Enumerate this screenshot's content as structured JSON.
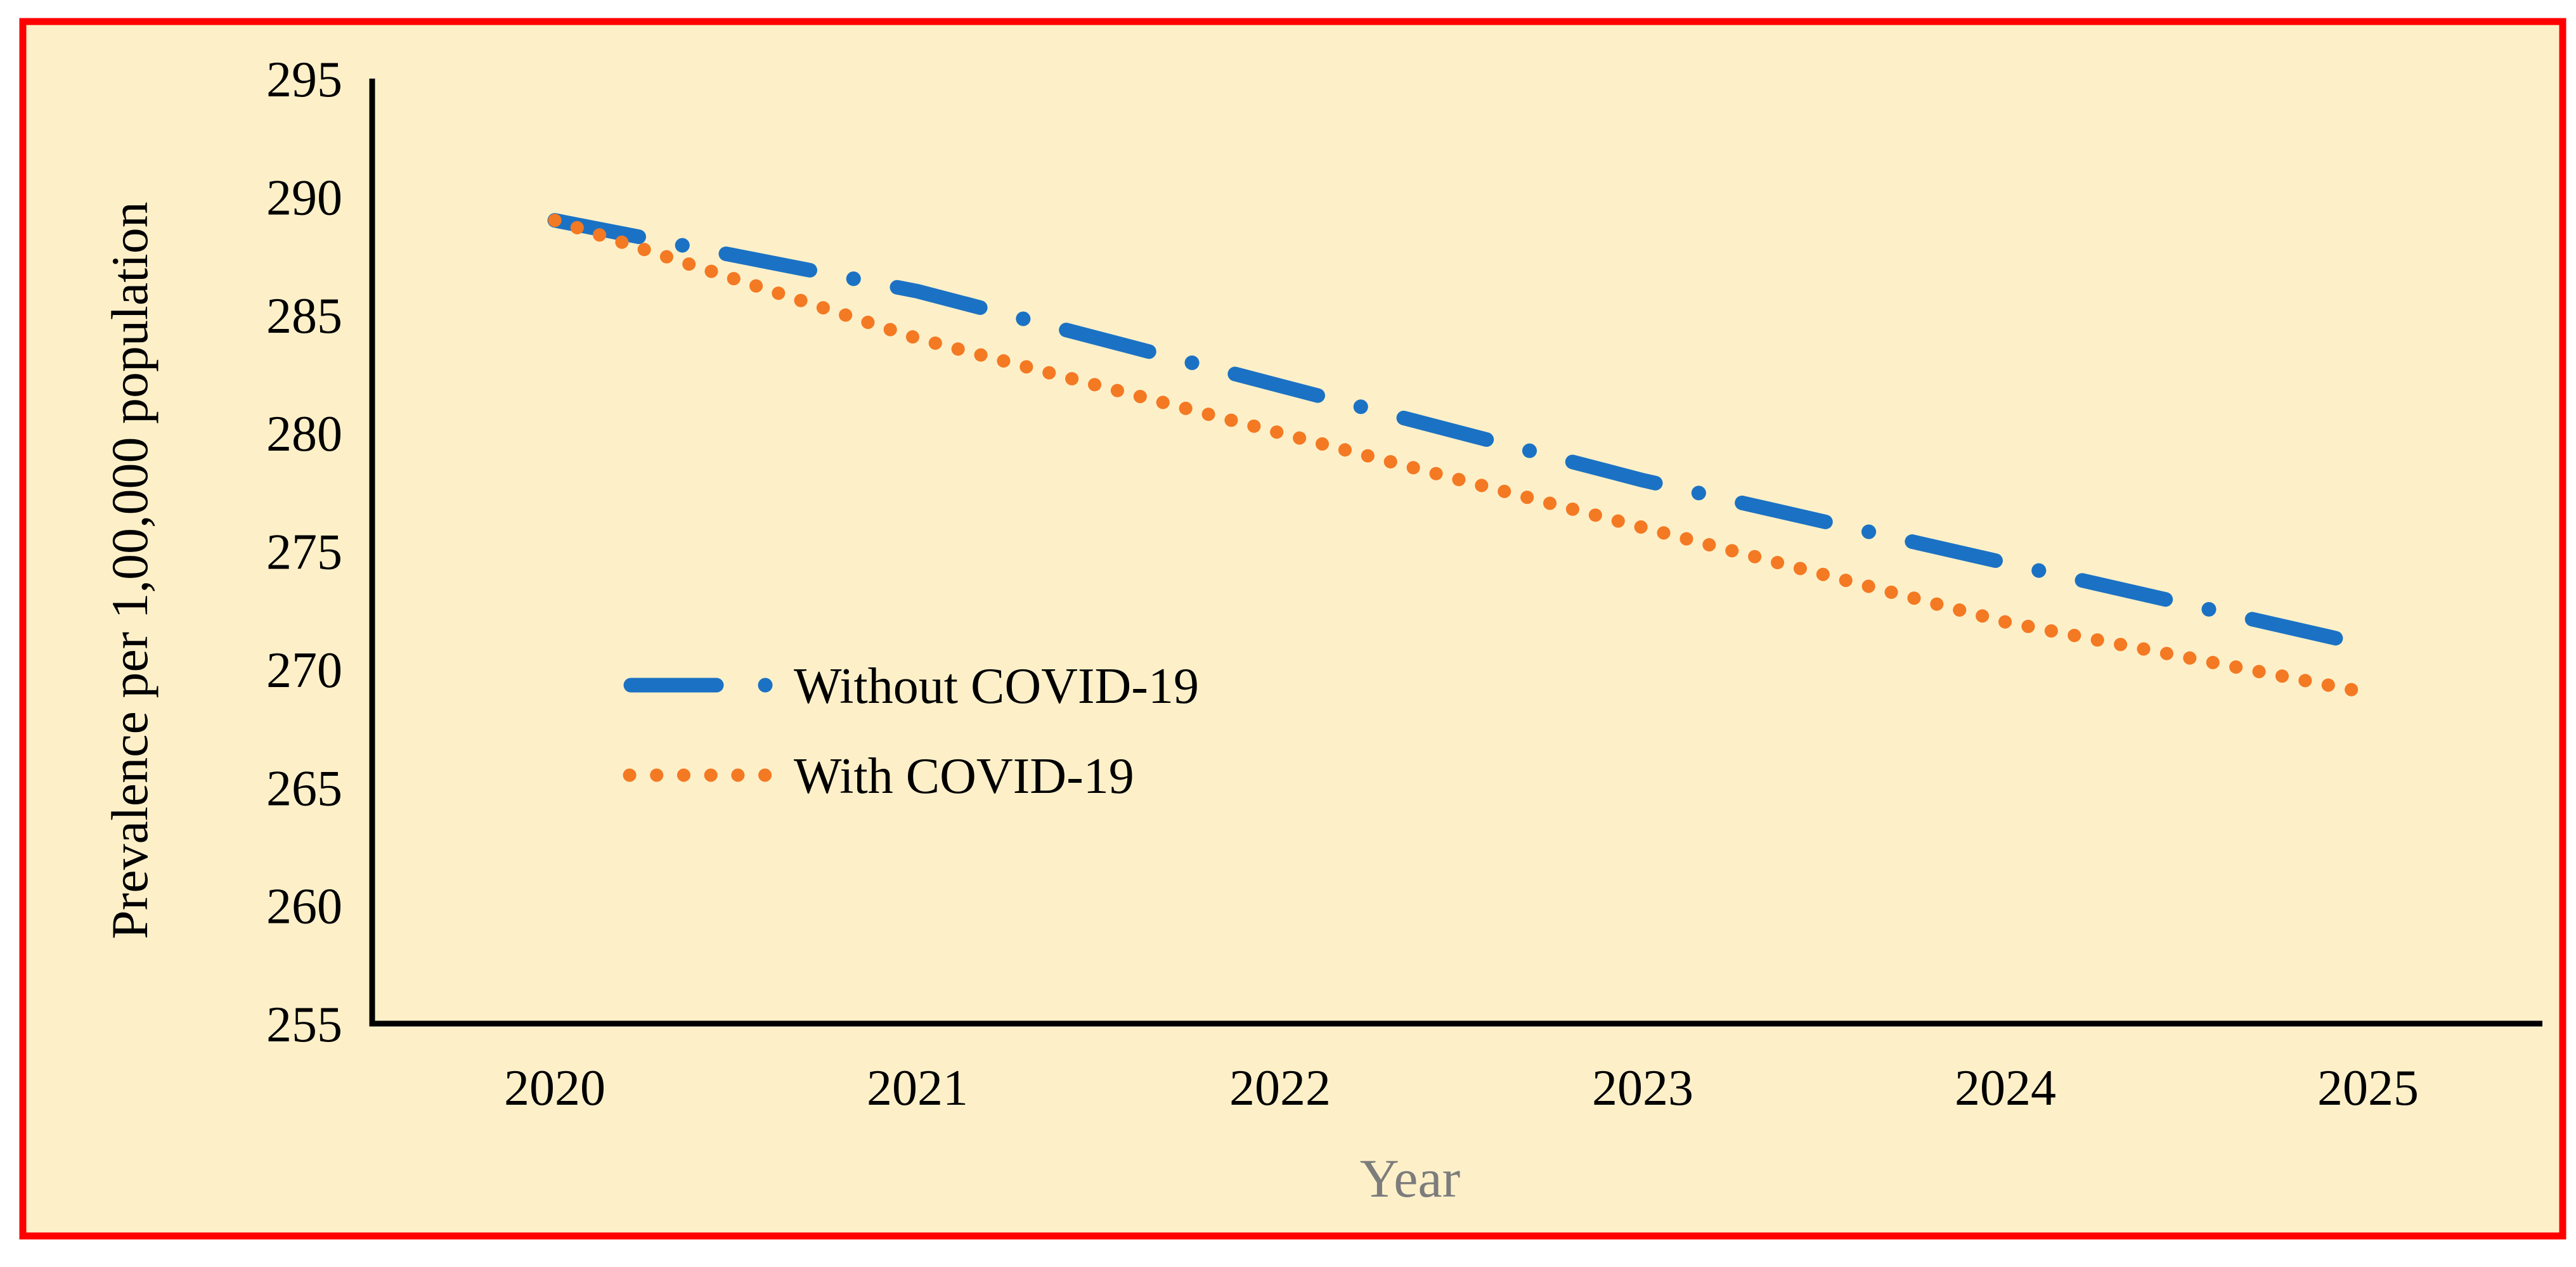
{
  "chart_data": {
    "type": "line",
    "title": "",
    "xlabel": "Year",
    "ylabel": "Prevalence per 1,00,000 population",
    "x_categories": [
      "2020",
      "2021",
      "2022",
      "2023",
      "2024",
      "2025"
    ],
    "yticks": [
      255,
      260,
      265,
      270,
      275,
      280,
      285,
      290,
      295
    ],
    "ylim": [
      255,
      295
    ],
    "grid": false,
    "legend_position": "inside-center-left",
    "series": [
      {
        "name": "Without COVID-19",
        "style": "dash-dot",
        "color": "#1b72c4",
        "values": [
          289,
          286,
          282,
          278,
          274.5,
          271
        ]
      },
      {
        "name": "With COVID-19",
        "style": "dotted",
        "color": "#f47923",
        "values": [
          289,
          284,
          280,
          276,
          272,
          269
        ]
      }
    ],
    "colors": {
      "background": "#fdf0c9",
      "frame_border": "#ff0000",
      "axis": "#000000",
      "x_title": "#7c7c7c",
      "text": "#000000"
    }
  }
}
